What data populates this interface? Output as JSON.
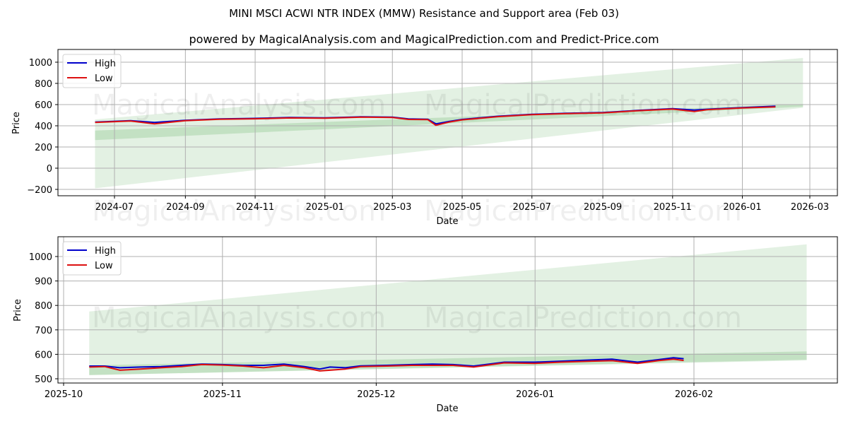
{
  "header": {
    "title": "MINI MSCI ACWI NTR INDEX (MMW) Resistance and Support area (Feb 03)",
    "subtitle": "powered by MagicalAnalysis.com and MagicalPrediction.com and Predict-Price.com"
  },
  "watermarks": [
    "MagicalAnalysis.com",
    "MagicalPrediction.com"
  ],
  "colors": {
    "high": "#0000cc",
    "low": "#dd1111",
    "band_light": "#c8e3c8",
    "band_dark": "#a9d3a9",
    "grid": "#b0b0b0"
  },
  "chart_data": [
    {
      "type": "line",
      "title": "",
      "xlabel": "Date",
      "ylabel": "Price",
      "ylim": [
        -260,
        1110
      ],
      "yticks": [
        -200,
        0,
        200,
        400,
        600,
        800,
        1000
      ],
      "ytick_labels": [
        "−200",
        "0",
        "200",
        "400",
        "600",
        "800",
        "1000"
      ],
      "xtick_labels": [
        "2024-07",
        "2024-09",
        "2024-11",
        "2025-01",
        "2025-03",
        "2025-05",
        "2025-07",
        "2025-09",
        "2025-11",
        "2026-01",
        "2026-03"
      ],
      "grid": true,
      "legend": {
        "position": "upper left",
        "entries": [
          "High",
          "Low"
        ]
      },
      "x": [
        "2024-06-14",
        "2024-07-15",
        "2024-08-05",
        "2024-09-01",
        "2024-10-01",
        "2024-11-01",
        "2024-12-01",
        "2025-01-01",
        "2025-02-01",
        "2025-03-01",
        "2025-03-15",
        "2025-04-01",
        "2025-04-08",
        "2025-04-20",
        "2025-05-01",
        "2025-06-01",
        "2025-07-01",
        "2025-08-01",
        "2025-09-01",
        "2025-10-01",
        "2025-11-01",
        "2025-11-20",
        "2025-12-01",
        "2026-01-01",
        "2026-01-30"
      ],
      "series": [
        {
          "name": "High",
          "values": [
            435,
            448,
            432,
            452,
            465,
            470,
            478,
            475,
            485,
            482,
            465,
            462,
            418,
            442,
            460,
            490,
            508,
            518,
            525,
            545,
            562,
            548,
            556,
            572,
            585
          ]
        },
        {
          "name": "Low",
          "values": [
            432,
            445,
            418,
            448,
            462,
            466,
            474,
            471,
            481,
            478,
            460,
            458,
            405,
            436,
            456,
            486,
            505,
            515,
            522,
            541,
            557,
            535,
            552,
            568,
            578
          ]
        }
      ],
      "bands": [
        {
          "name": "Outer support/resistance area",
          "x_start": "2024-06-14",
          "x_end": "2026-02-23",
          "upper_start": 460,
          "upper_end": 1040,
          "lower_start": -190,
          "lower_end": 570
        },
        {
          "name": "Inner support area",
          "x_start": "2024-06-14",
          "x_end": "2026-02-23",
          "upper_start": 355,
          "upper_end": 605,
          "lower_start": 265,
          "lower_end": 580
        }
      ]
    },
    {
      "type": "line",
      "title": "",
      "xlabel": "Date",
      "ylabel": "Price",
      "ylim": [
        480,
        1075
      ],
      "yticks": [
        500,
        600,
        700,
        800,
        900,
        1000
      ],
      "ytick_labels": [
        "500",
        "600",
        "700",
        "800",
        "900",
        "1000"
      ],
      "xtick_labels": [
        "2025-10",
        "2025-11",
        "2025-12",
        "2026-01",
        "2026-02"
      ],
      "grid": true,
      "legend": {
        "position": "upper left",
        "entries": [
          "High",
          "Low"
        ]
      },
      "x": [
        "2025-10-06",
        "2025-10-09",
        "2025-10-12",
        "2025-10-16",
        "2025-10-20",
        "2025-10-24",
        "2025-10-28",
        "2025-11-01",
        "2025-11-05",
        "2025-11-09",
        "2025-11-13",
        "2025-11-17",
        "2025-11-20",
        "2025-11-22",
        "2025-11-25",
        "2025-11-28",
        "2025-12-03",
        "2025-12-08",
        "2025-12-12",
        "2025-12-16",
        "2025-12-20",
        "2025-12-26",
        "2026-01-01",
        "2026-01-06",
        "2026-01-12",
        "2026-01-16",
        "2026-01-21",
        "2026-01-25",
        "2026-01-28",
        "2026-01-30"
      ],
      "series": [
        {
          "name": "High",
          "values": [
            552,
            552,
            545,
            548,
            550,
            555,
            560,
            558,
            555,
            555,
            560,
            550,
            540,
            548,
            545,
            553,
            555,
            558,
            560,
            558,
            552,
            568,
            568,
            572,
            577,
            580,
            568,
            578,
            586,
            582
          ]
        },
        {
          "name": "Low",
          "values": [
            548,
            550,
            535,
            540,
            545,
            550,
            558,
            556,
            552,
            545,
            555,
            545,
            532,
            535,
            540,
            550,
            552,
            555,
            555,
            555,
            548,
            565,
            563,
            568,
            572,
            574,
            563,
            574,
            580,
            575
          ]
        }
      ],
      "bands": [
        {
          "name": "Outer support/resistance area",
          "x_start": "2025-10-06",
          "x_end": "2026-02-23",
          "upper_start": 775,
          "upper_end": 1050,
          "lower_start": 515,
          "lower_end": 575
        },
        {
          "name": "Inner support area",
          "x_start": "2025-10-06",
          "x_end": "2026-02-23",
          "upper_start": 555,
          "upper_end": 612,
          "lower_start": 515,
          "lower_end": 578
        }
      ]
    }
  ]
}
